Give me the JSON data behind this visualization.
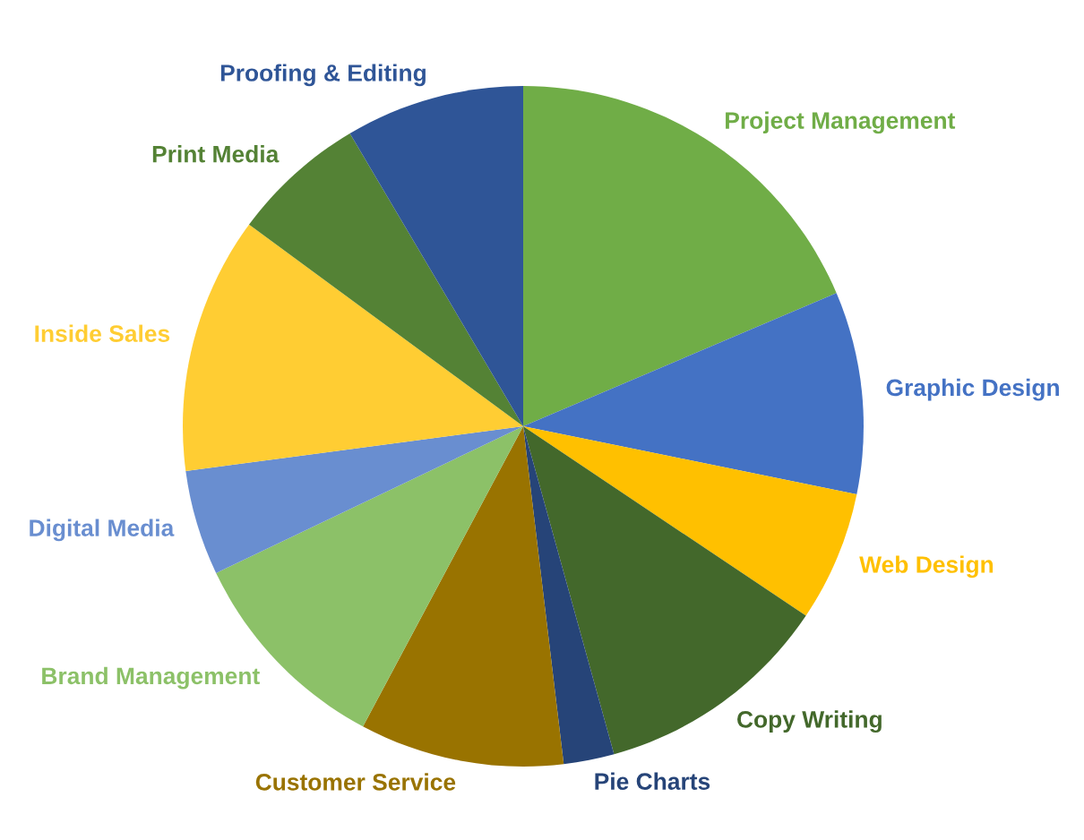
{
  "chart_data": {
    "type": "pie",
    "categories": [
      "Project Management",
      "Graphic Design",
      "Web Design",
      "Copy Writing",
      "Pie Charts",
      "Customer Service",
      "Brand Management",
      "Digital Media",
      "Inside Sales",
      "Print Media",
      "Proofing & Editing"
    ],
    "values": [
      18.6,
      9.6,
      6.2,
      11.3,
      2.4,
      9.7,
      10.1,
      5.0,
      12.2,
      6.4,
      8.5
    ],
    "colors": [
      "#70ad47",
      "#4472c4",
      "#ffc000",
      "#43682b",
      "#264478",
      "#997300",
      "#8cc168",
      "#698ed0",
      "#ffcd33",
      "#548235",
      "#2f5597"
    ],
    "legend": false
  }
}
